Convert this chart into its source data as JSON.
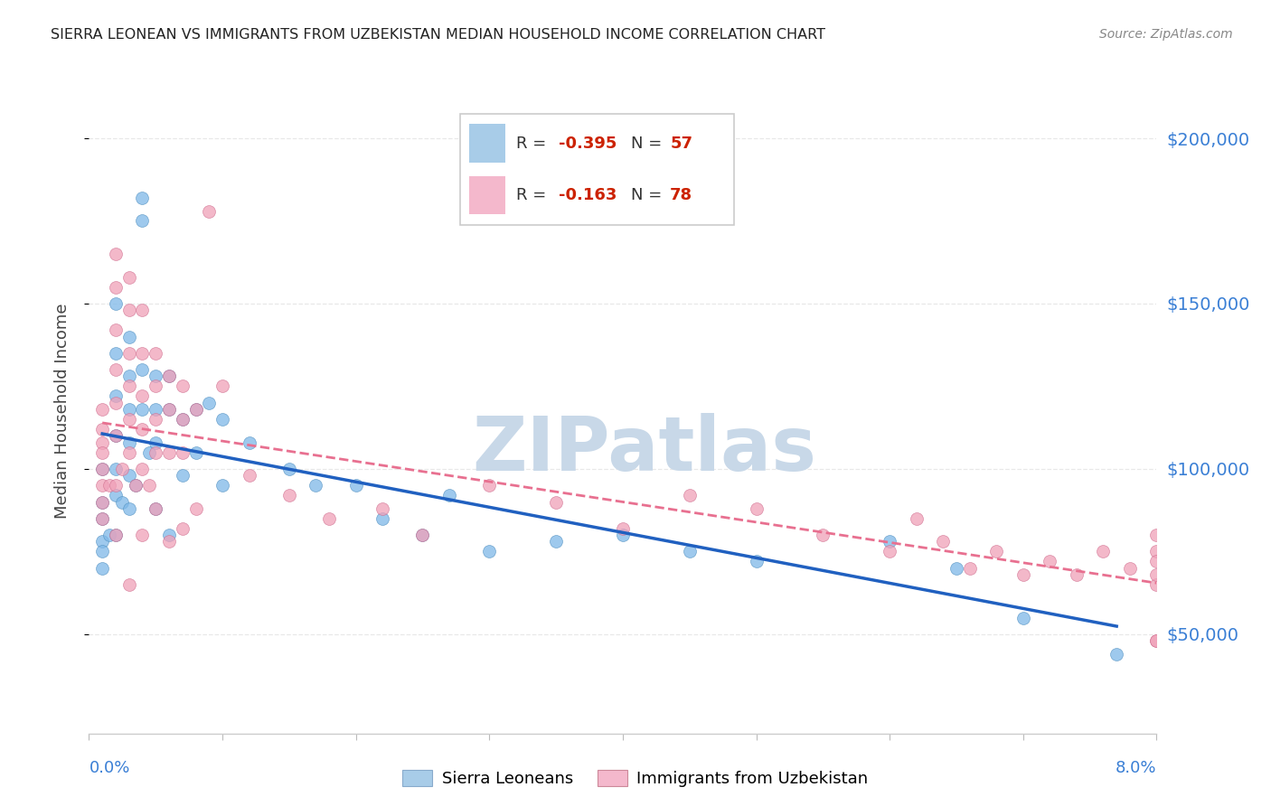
{
  "title": "SIERRA LEONEAN VS IMMIGRANTS FROM UZBEKISTAN MEDIAN HOUSEHOLD INCOME CORRELATION CHART",
  "source": "Source: ZipAtlas.com",
  "ylabel": "Median Household Income",
  "xmin": 0.0,
  "xmax": 0.08,
  "ymin": 20000,
  "ymax": 215000,
  "yticks": [
    50000,
    100000,
    150000,
    200000
  ],
  "ytick_labels": [
    "$50,000",
    "$100,000",
    "$150,000",
    "$200,000"
  ],
  "xticks": [
    0.0,
    0.01,
    0.02,
    0.03,
    0.04,
    0.05,
    0.06,
    0.07,
    0.08
  ],
  "legend_r_values": [
    "-0.395",
    "-0.163"
  ],
  "legend_n_values": [
    "57",
    "78"
  ],
  "background_color": "#ffffff",
  "watermark_text": "ZIPatlas",
  "watermark_color": "#c8d8e8",
  "blue_scatter_color": "#7eb8e8",
  "pink_scatter_color": "#f0a0b8",
  "blue_line_color": "#2060c0",
  "pink_line_color": "#e87090",
  "blue_legend_color": "#a8cce8",
  "pink_legend_color": "#f4b8cc",
  "r_n_color": "#cc2200",
  "label_color": "#3a7fd5",
  "title_color": "#222222",
  "source_color": "#888888",
  "ylabel_color": "#444444",
  "grid_color": "#e8e8e8",
  "sierra_leonean_x": [
    0.001,
    0.001,
    0.001,
    0.001,
    0.001,
    0.001,
    0.0015,
    0.002,
    0.002,
    0.002,
    0.002,
    0.002,
    0.002,
    0.002,
    0.0025,
    0.003,
    0.003,
    0.003,
    0.003,
    0.003,
    0.003,
    0.0035,
    0.004,
    0.004,
    0.004,
    0.004,
    0.0045,
    0.005,
    0.005,
    0.005,
    0.005,
    0.006,
    0.006,
    0.006,
    0.007,
    0.007,
    0.008,
    0.008,
    0.009,
    0.01,
    0.01,
    0.012,
    0.015,
    0.017,
    0.02,
    0.022,
    0.025,
    0.027,
    0.03,
    0.035,
    0.04,
    0.045,
    0.05,
    0.06,
    0.065,
    0.07,
    0.077
  ],
  "sierra_leonean_y": [
    100000,
    90000,
    85000,
    78000,
    75000,
    70000,
    80000,
    150000,
    135000,
    122000,
    110000,
    100000,
    92000,
    80000,
    90000,
    140000,
    128000,
    118000,
    108000,
    98000,
    88000,
    95000,
    182000,
    175000,
    130000,
    118000,
    105000,
    128000,
    118000,
    108000,
    88000,
    128000,
    118000,
    80000,
    115000,
    98000,
    118000,
    105000,
    120000,
    115000,
    95000,
    108000,
    100000,
    95000,
    95000,
    85000,
    80000,
    92000,
    75000,
    78000,
    80000,
    75000,
    72000,
    78000,
    70000,
    55000,
    44000
  ],
  "uzbekistan_x": [
    0.001,
    0.001,
    0.001,
    0.001,
    0.001,
    0.001,
    0.001,
    0.001,
    0.0015,
    0.002,
    0.002,
    0.002,
    0.002,
    0.002,
    0.002,
    0.002,
    0.002,
    0.0025,
    0.003,
    0.003,
    0.003,
    0.003,
    0.003,
    0.003,
    0.003,
    0.0035,
    0.004,
    0.004,
    0.004,
    0.004,
    0.004,
    0.004,
    0.0045,
    0.005,
    0.005,
    0.005,
    0.005,
    0.005,
    0.006,
    0.006,
    0.006,
    0.006,
    0.007,
    0.007,
    0.007,
    0.007,
    0.008,
    0.008,
    0.009,
    0.01,
    0.012,
    0.015,
    0.018,
    0.022,
    0.025,
    0.03,
    0.035,
    0.04,
    0.045,
    0.05,
    0.055,
    0.06,
    0.062,
    0.064,
    0.066,
    0.068,
    0.07,
    0.072,
    0.074,
    0.076,
    0.078,
    0.08,
    0.08,
    0.08,
    0.08,
    0.08,
    0.08,
    0.08
  ],
  "uzbekistan_y": [
    118000,
    112000,
    108000,
    105000,
    100000,
    95000,
    90000,
    85000,
    95000,
    165000,
    155000,
    142000,
    130000,
    120000,
    110000,
    95000,
    80000,
    100000,
    158000,
    148000,
    135000,
    125000,
    115000,
    105000,
    65000,
    95000,
    148000,
    135000,
    122000,
    112000,
    100000,
    80000,
    95000,
    135000,
    125000,
    115000,
    105000,
    88000,
    128000,
    118000,
    105000,
    78000,
    125000,
    115000,
    105000,
    82000,
    118000,
    88000,
    178000,
    125000,
    98000,
    92000,
    85000,
    88000,
    80000,
    95000,
    90000,
    82000,
    92000,
    88000,
    80000,
    75000,
    85000,
    78000,
    70000,
    75000,
    68000,
    72000,
    68000,
    75000,
    70000,
    65000,
    48000,
    80000,
    75000,
    68000,
    72000,
    48000
  ]
}
